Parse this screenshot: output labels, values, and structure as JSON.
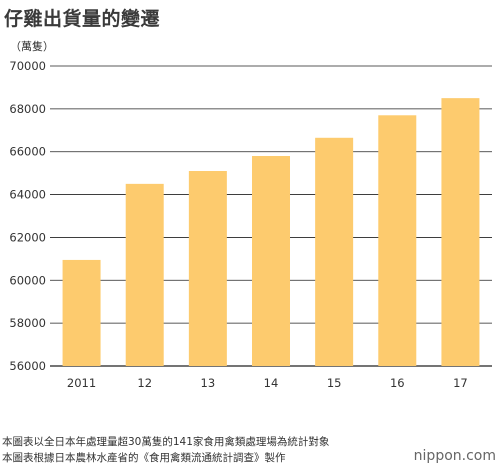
{
  "title": "仔雞出貨量的變遷",
  "unit_label": "（萬隻）",
  "notes": [
    "本圖表以全日本年處理量超30萬隻的141家食用禽類處理場為統計對象",
    "本圖表根據日本農林水產省的《食用禽類流通統計調查》製作"
  ],
  "brand": {
    "prefix": "",
    "name": "nippon.com"
  },
  "colors": {
    "bar": "#fdcb6e",
    "axis": "#222222",
    "grid": "#222222"
  },
  "chart_data": {
    "type": "bar",
    "title": "仔雞出貨量的變遷",
    "ylabel": "（萬隻）",
    "xlabel": "",
    "categories": [
      "2011",
      "12",
      "13",
      "14",
      "15",
      "16",
      "17"
    ],
    "values": [
      60950,
      64500,
      65100,
      65800,
      66650,
      67700,
      68500
    ],
    "ylim": [
      56000,
      70000
    ],
    "yticks": [
      56000,
      58000,
      60000,
      62000,
      64000,
      66000,
      68000,
      70000
    ],
    "grid": true,
    "legend": "none"
  }
}
